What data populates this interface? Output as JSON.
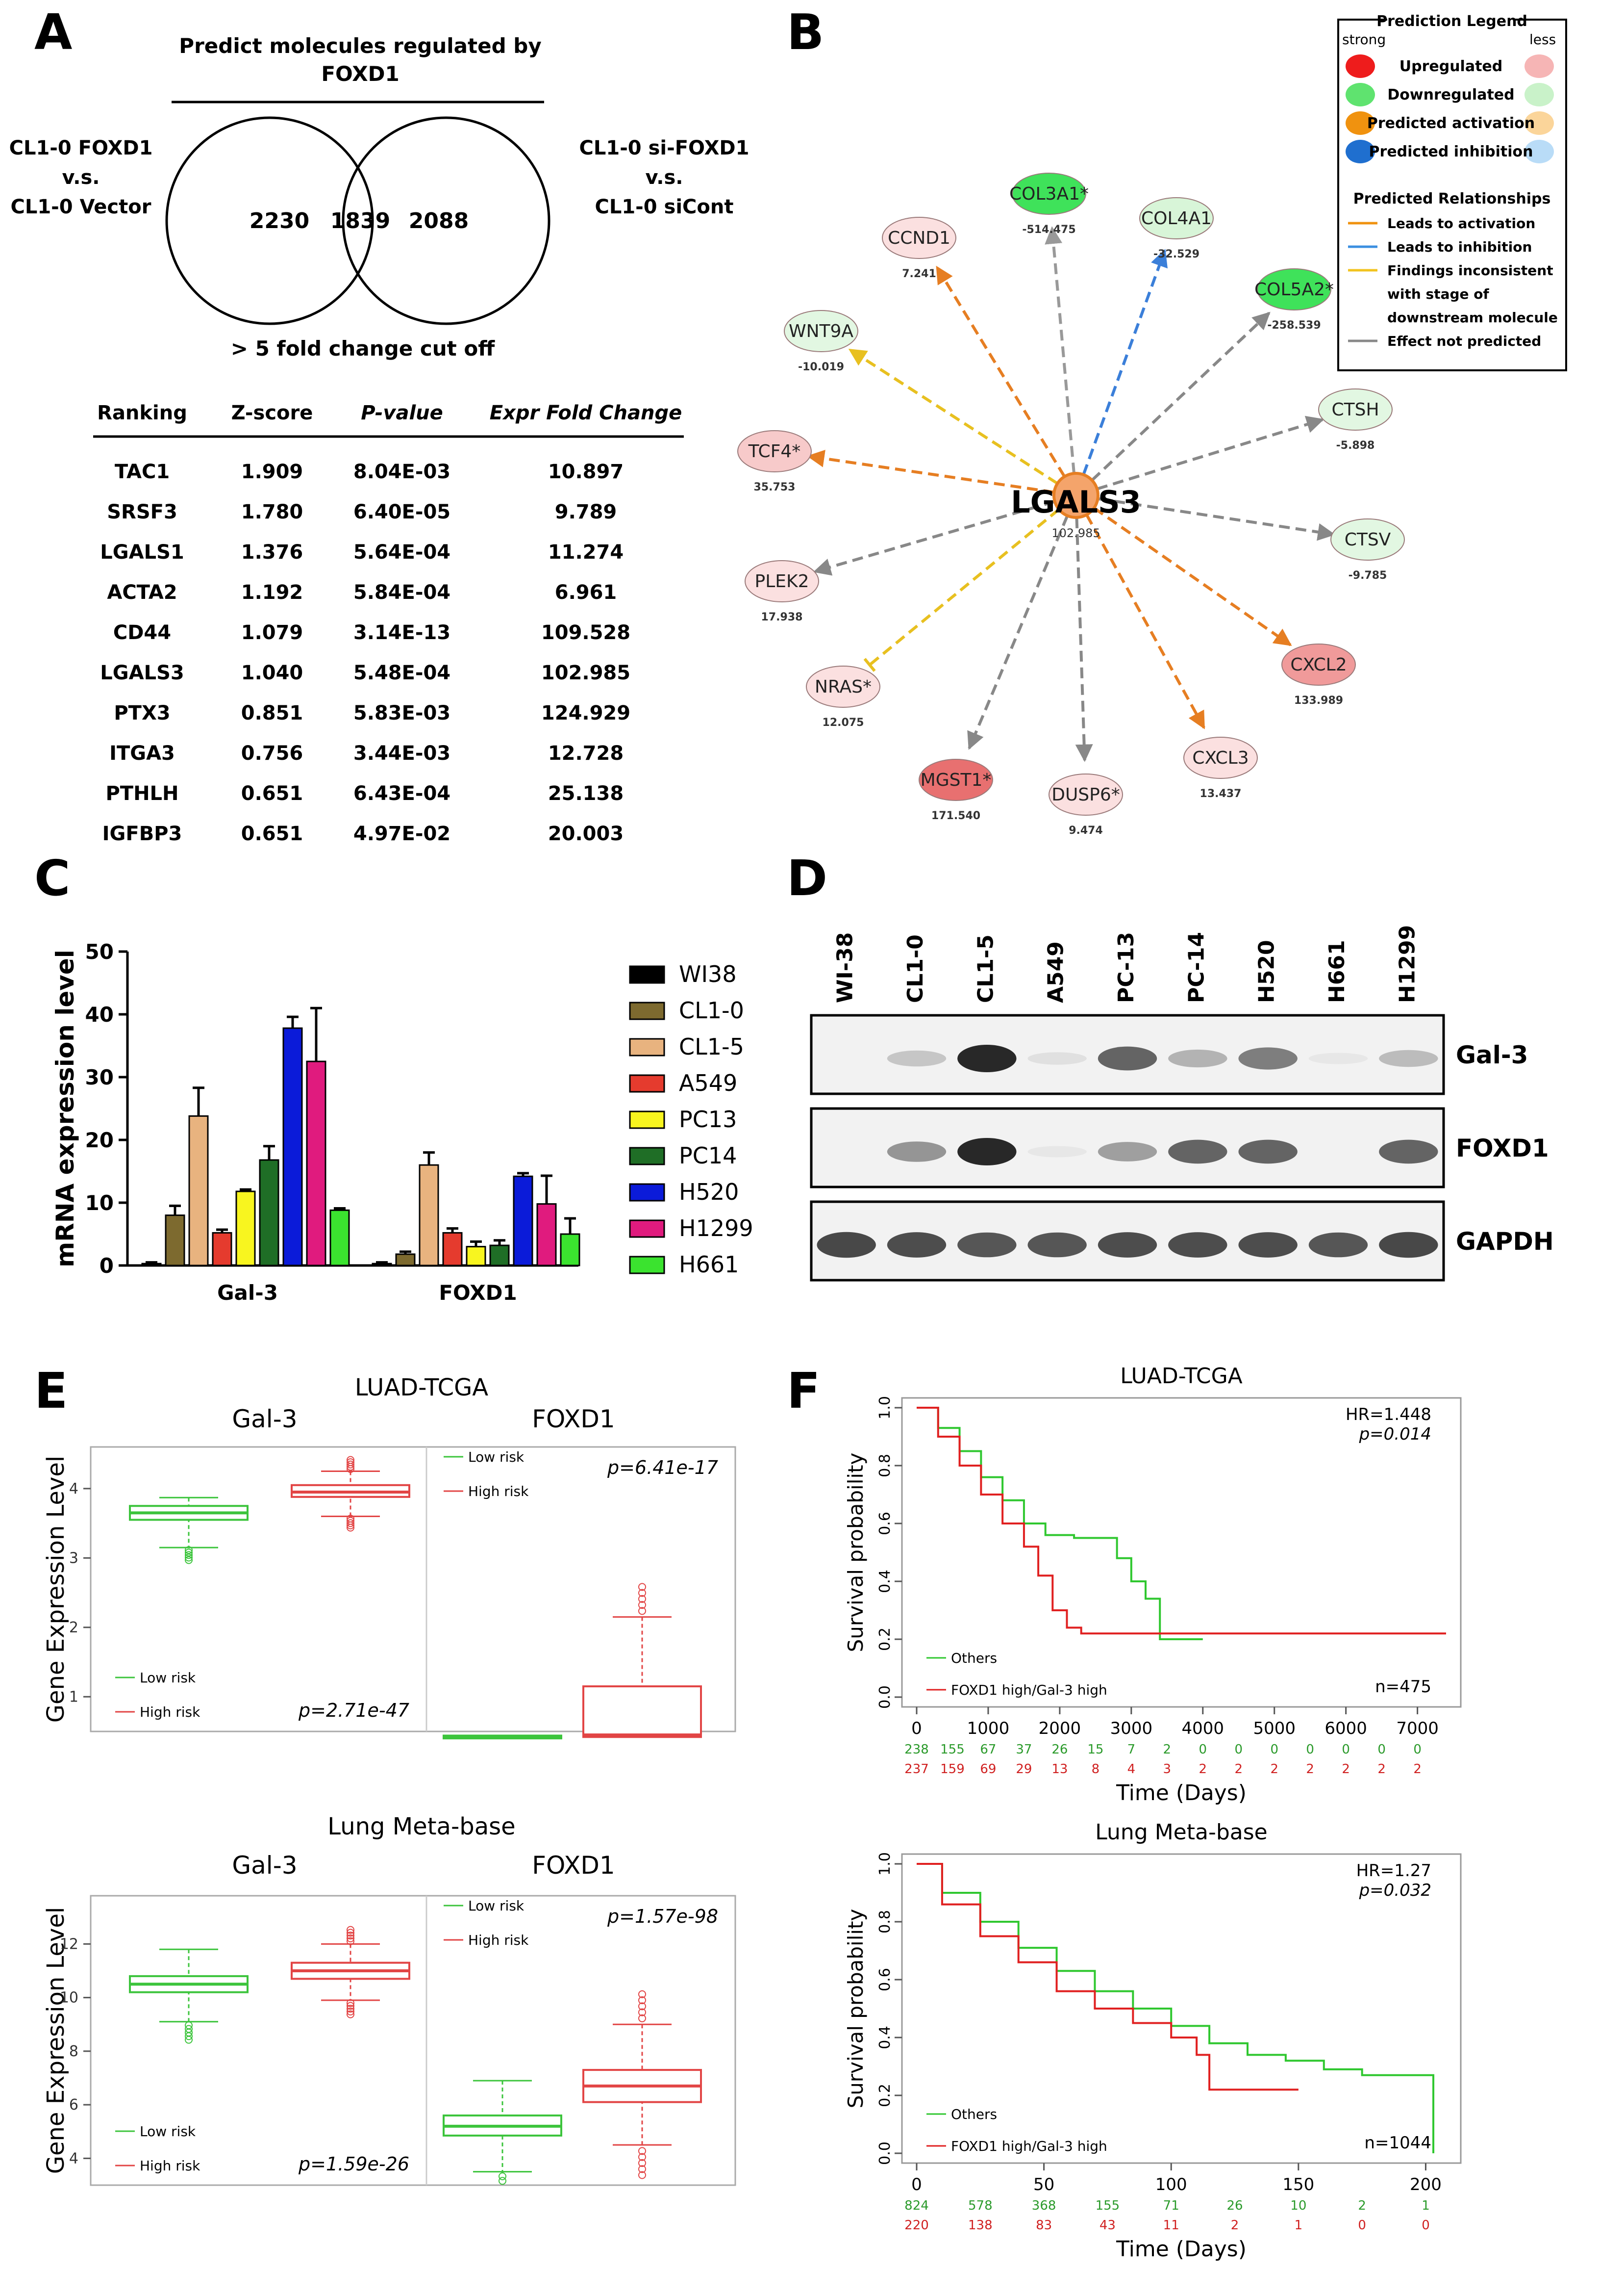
{
  "panelA": {
    "letter": "A",
    "title_line1": "Predict molecules regulated by",
    "title_line2": "FOXD1",
    "left_l1": "CL1-0 FOXD1",
    "left_l2": "v.s.",
    "left_l3": "CL1-0 Vector",
    "right_l1": "CL1-0 si-FOXD1",
    "right_l2": "v.s.",
    "right_l3": "CL1-0 siCont",
    "venn_left": "2230",
    "venn_mid": "1839",
    "venn_right": "2088",
    "cutoff": "> 5 fold change cut off",
    "table": {
      "headers": [
        "Ranking",
        "Z-score",
        "P-value",
        "Expr Fold Change"
      ],
      "rows": [
        [
          "TAC1",
          "1.909",
          "8.04E-03",
          "10.897"
        ],
        [
          "SRSF3",
          "1.780",
          "6.40E-05",
          "9.789"
        ],
        [
          "LGALS1",
          "1.376",
          "5.64E-04",
          "11.274"
        ],
        [
          "ACTA2",
          "1.192",
          "5.84E-04",
          "6.961"
        ],
        [
          "CD44",
          "1.079",
          "3.14E-13",
          "109.528"
        ],
        [
          "LGALS3",
          "1.040",
          "5.48E-04",
          "102.985"
        ],
        [
          "PTX3",
          "0.851",
          "5.83E-03",
          "124.929"
        ],
        [
          "ITGA3",
          "0.756",
          "3.44E-03",
          "12.728"
        ],
        [
          "PTHLH",
          "0.651",
          "6.43E-04",
          "25.138"
        ],
        [
          "IGFBP3",
          "0.651",
          "4.97E-02",
          "20.003"
        ]
      ]
    }
  },
  "panelB": {
    "letter": "B",
    "center": "LGALS3",
    "center_val": "102.985",
    "nodes": [
      {
        "label": "COL3A1*",
        "val": "-514.475",
        "color": "#3fe25a",
        "edge": "#999999"
      },
      {
        "label": "COL4A1",
        "val": "-32.529",
        "color": "#d8f5d8",
        "edge": "#3b7fd9"
      },
      {
        "label": "COL5A2*",
        "val": "-258.539",
        "color": "#3fe25a",
        "edge": "#888888"
      },
      {
        "label": "CTSH",
        "val": "-5.898",
        "color": "#e2f7e2",
        "edge": "#888888"
      },
      {
        "label": "CTSV",
        "val": "-9.785",
        "color": "#e2f7e2",
        "edge": "#888888"
      },
      {
        "label": "CXCL2",
        "val": "133.989",
        "color": "#f09a9a",
        "edge": "#e67e22"
      },
      {
        "label": "CXCL3",
        "val": "13.437",
        "color": "#fbe0e0",
        "edge": "#e67e22"
      },
      {
        "label": "DUSP6*",
        "val": "9.474",
        "color": "#fbe0e0",
        "edge": "#888888"
      },
      {
        "label": "MGST1*",
        "val": "171.540",
        "color": "#e87070",
        "edge": "#888888"
      },
      {
        "label": "NRAS*",
        "val": "12.075",
        "color": "#fbe0e0",
        "edge": "#e8c020"
      },
      {
        "label": "PLEK2",
        "val": "17.938",
        "color": "#fbe0e0",
        "edge": "#888888"
      },
      {
        "label": "TCF4*",
        "val": "35.753",
        "color": "#f7caca",
        "edge": "#e67e22"
      },
      {
        "label": "WNT9A",
        "val": "-10.019",
        "color": "#e2f7e2",
        "edge": "#e8c020"
      },
      {
        "label": "CCND1",
        "val": "7.241",
        "color": "#fbe0e0",
        "edge": "#e67e22"
      }
    ],
    "legend": {
      "title": "Prediction Legend",
      "strong": "strong",
      "less": "less",
      "items": [
        {
          "label": "Upregulated",
          "c1": "#ee1c1c",
          "c2": "#f6b5b5"
        },
        {
          "label": "Downregulated",
          "c1": "#5fe36f",
          "c2": "#c9f2c9"
        },
        {
          "label": "Predicted activation",
          "c1": "#f0920f",
          "c2": "#fbd59a"
        },
        {
          "label": "Predicted inhibition",
          "c1": "#1f6fcf",
          "c2": "#b9dcf7"
        }
      ],
      "rel_title": "Predicted Relationships",
      "rels": [
        {
          "label": "Leads to activation",
          "color": "#f0920f"
        },
        {
          "label": "Leads to inhibition",
          "color": "#3b8fe0"
        },
        {
          "label": "Findings inconsistent",
          "color": "#f2c31f"
        },
        {
          "label": "with stage of",
          "color": ""
        },
        {
          "label": "downstream molecule",
          "color": ""
        },
        {
          "label": "Effect not predicted",
          "color": "#888888"
        }
      ]
    }
  },
  "panelC": {
    "letter": "C",
    "ylabel": "mRNA expression level",
    "chart_data": {
      "type": "bar",
      "categories": [
        "Gal-3",
        "FOXD1"
      ],
      "ylim": [
        0,
        50
      ],
      "yticks": [
        "0",
        "10",
        "20",
        "30",
        "40",
        "50"
      ],
      "series": [
        {
          "name": "WI38",
          "color": "#000000",
          "values": [
            0.3,
            0.3
          ],
          "err": [
            0.2,
            0.2
          ]
        },
        {
          "name": "CL1-0",
          "color": "#7d6a2f",
          "values": [
            8,
            1.8
          ],
          "err": [
            1.5,
            0.4
          ]
        },
        {
          "name": "CL1-5",
          "color": "#e8b37f",
          "values": [
            23.8,
            16
          ],
          "err": [
            4.5,
            2
          ]
        },
        {
          "name": "A549",
          "color": "#e53b2e",
          "values": [
            5.2,
            5.2
          ],
          "err": [
            0.5,
            0.7
          ]
        },
        {
          "name": "PC13",
          "color": "#f8f51f",
          "values": [
            11.8,
            3
          ],
          "err": [
            0.3,
            0.8
          ]
        },
        {
          "name": "PC14",
          "color": "#1f6e26",
          "values": [
            16.8,
            3.2
          ],
          "err": [
            2.2,
            0.8
          ]
        },
        {
          "name": "H520",
          "color": "#0b1bd9",
          "values": [
            37.8,
            14.2
          ],
          "err": [
            1.8,
            0.5
          ]
        },
        {
          "name": "H1299",
          "color": "#e01b7e",
          "values": [
            32.5,
            9.8
          ],
          "err": [
            8.5,
            4.5
          ]
        },
        {
          "name": "H661",
          "color": "#3be32f",
          "values": [
            8.8,
            5
          ],
          "err": [
            0.3,
            2.5
          ]
        }
      ]
    }
  },
  "panelD": {
    "letter": "D",
    "lanes": [
      "WI-38",
      "CL1-0",
      "CL1-5",
      "A549",
      "PC-13",
      "PC-14",
      "H520",
      "H661",
      "H1299"
    ],
    "blots": [
      {
        "label": "Gal-3",
        "intensity": [
          0.0,
          0.35,
          1.0,
          0.15,
          0.8,
          0.45,
          0.7,
          0.08,
          0.4
        ]
      },
      {
        "label": "FOXD1",
        "intensity": [
          0.0,
          0.6,
          1.0,
          0.08,
          0.55,
          0.8,
          0.8,
          0.0,
          0.8
        ]
      },
      {
        "label": "GAPDH",
        "intensity": [
          0.9,
          0.88,
          0.85,
          0.85,
          0.88,
          0.88,
          0.88,
          0.85,
          0.9
        ]
      }
    ]
  },
  "panelE": {
    "letter": "E",
    "ylabel": "Gene Expression Level",
    "plots": [
      {
        "title": "LUAD-TCGA",
        "gene1": "Gal-3",
        "gene2": "FOXD1",
        "p1": "p=2.71e-47",
        "p2": "p=6.41e-17",
        "low": "Low risk",
        "high": "High risk",
        "yticks": [
          "1",
          "2",
          "3",
          "4"
        ],
        "ylim": [
          0.5,
          4.6
        ],
        "box_data": [
          {
            "med": 3.65,
            "q1": 3.55,
            "q3": 3.75,
            "lo": 3.15,
            "hi": 3.87
          },
          {
            "med": 3.95,
            "q1": 3.88,
            "q3": 4.05,
            "lo": 3.6,
            "hi": 4.25
          },
          {
            "med": 0.42,
            "q1": 0.4,
            "q3": 0.44,
            "lo": 0.4,
            "hi": 0.44
          },
          {
            "med": 0.45,
            "q1": 0.42,
            "q3": 1.15,
            "lo": 0.42,
            "hi": 2.15
          }
        ]
      },
      {
        "title": "Lung Meta-base",
        "gene1": "Gal-3",
        "gene2": "FOXD1",
        "p1": "p=1.59e-26",
        "p2": "p=1.57e-98",
        "low": "Low risk",
        "high": "High risk",
        "yticks": [
          "4",
          "6",
          "8",
          "10",
          "12"
        ],
        "ylim": [
          3,
          13.8
        ],
        "box_data": [
          {
            "med": 10.5,
            "q1": 10.2,
            "q3": 10.8,
            "lo": 9.1,
            "hi": 11.8
          },
          {
            "med": 11.0,
            "q1": 10.7,
            "q3": 11.3,
            "lo": 9.9,
            "hi": 12.0
          },
          {
            "med": 5.2,
            "q1": 4.85,
            "q3": 5.6,
            "lo": 3.5,
            "hi": 6.9
          },
          {
            "med": 6.7,
            "q1": 6.1,
            "q3": 7.3,
            "lo": 4.5,
            "hi": 9.0
          }
        ]
      }
    ]
  },
  "panelF": {
    "letter": "F",
    "ylabel": "Survival probability",
    "xlabel": "Time (Days)",
    "plots": [
      {
        "title": "LUAD-TCGA",
        "hr": "HR=1.448",
        "p": "p=0.014",
        "n": "n=475",
        "legend1": "Others",
        "legend2": "FOXD1 high/Gal-3 high",
        "xticks": [
          "0",
          "1000",
          "2000",
          "3000",
          "4000",
          "5000",
          "6000",
          "7000"
        ],
        "xmax": 7400,
        "yticks": [
          "0.0",
          "0.2",
          "0.4",
          "0.6",
          "0.8",
          "1.0"
        ],
        "risk_green": [
          "238",
          "155",
          "67",
          "37",
          "26",
          "15",
          "7",
          "2",
          "0",
          "0",
          "0",
          "0",
          "0",
          "0",
          "0"
        ],
        "risk_red": [
          "237",
          "159",
          "69",
          "29",
          "13",
          "8",
          "4",
          "3",
          "2",
          "2",
          "2",
          "2",
          "2",
          "2",
          "2"
        ],
        "risk_step": 500,
        "green": [
          [
            0,
            1.0
          ],
          [
            300,
            0.93
          ],
          [
            600,
            0.85
          ],
          [
            900,
            0.76
          ],
          [
            1200,
            0.68
          ],
          [
            1500,
            0.6
          ],
          [
            1800,
            0.56
          ],
          [
            2200,
            0.55
          ],
          [
            2600,
            0.55
          ],
          [
            2800,
            0.48
          ],
          [
            3000,
            0.4
          ],
          [
            3200,
            0.34
          ],
          [
            3400,
            0.2
          ],
          [
            4000,
            0.2
          ]
        ],
        "red": [
          [
            0,
            1.0
          ],
          [
            300,
            0.9
          ],
          [
            600,
            0.8
          ],
          [
            900,
            0.7
          ],
          [
            1200,
            0.6
          ],
          [
            1500,
            0.52
          ],
          [
            1700,
            0.42
          ],
          [
            1900,
            0.3
          ],
          [
            2100,
            0.24
          ],
          [
            2300,
            0.22
          ],
          [
            2600,
            0.22
          ],
          [
            7400,
            0.22
          ]
        ]
      },
      {
        "title": "Lung Meta-base",
        "hr": "HR=1.27",
        "p": "p=0.032",
        "n": "n=1044",
        "legend1": "Others",
        "legend2": "FOXD1 high/Gal-3 high",
        "xticks": [
          "0",
          "50",
          "100",
          "150",
          "200"
        ],
        "xmax": 208,
        "yticks": [
          "0.0",
          "0.2",
          "0.4",
          "0.6",
          "0.8",
          "1.0"
        ],
        "risk_green": [
          "824",
          "578",
          "368",
          "155",
          "71",
          "26",
          "10",
          "2",
          "1"
        ],
        "risk_red": [
          "220",
          "138",
          "83",
          "43",
          "11",
          "2",
          "1",
          "0",
          "0"
        ],
        "risk_step": 25,
        "green": [
          [
            0,
            1.0
          ],
          [
            10,
            0.9
          ],
          [
            25,
            0.8
          ],
          [
            40,
            0.71
          ],
          [
            55,
            0.63
          ],
          [
            70,
            0.56
          ],
          [
            85,
            0.5
          ],
          [
            100,
            0.44
          ],
          [
            115,
            0.38
          ],
          [
            130,
            0.34
          ],
          [
            145,
            0.32
          ],
          [
            160,
            0.29
          ],
          [
            175,
            0.27
          ],
          [
            200,
            0.27
          ],
          [
            203,
            0.0
          ]
        ],
        "red": [
          [
            0,
            1.0
          ],
          [
            10,
            0.86
          ],
          [
            25,
            0.75
          ],
          [
            40,
            0.66
          ],
          [
            55,
            0.56
          ],
          [
            70,
            0.5
          ],
          [
            85,
            0.45
          ],
          [
            100,
            0.4
          ],
          [
            110,
            0.34
          ],
          [
            115,
            0.22
          ],
          [
            150,
            0.22
          ]
        ]
      }
    ]
  }
}
